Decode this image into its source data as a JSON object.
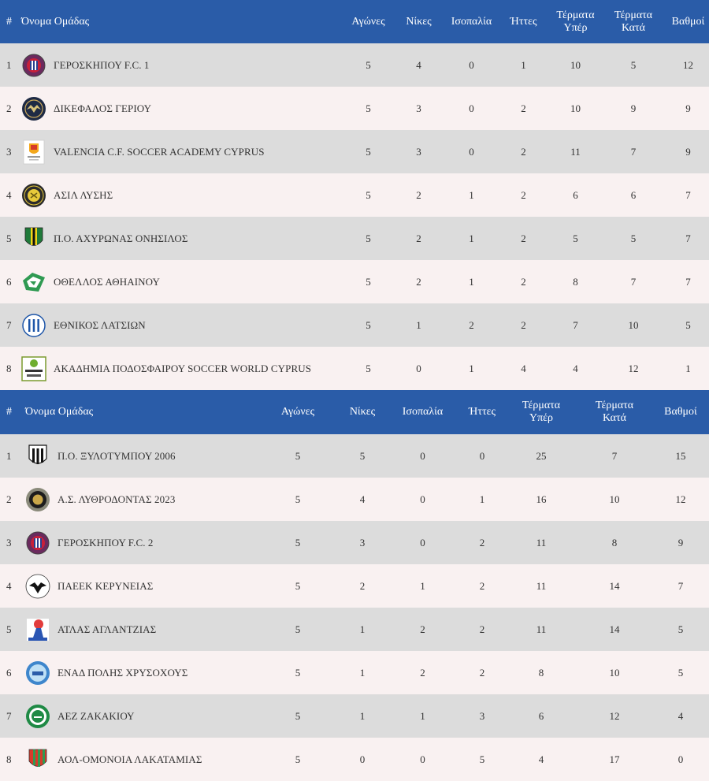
{
  "header": {
    "rank": "#",
    "team": "Όνομα Ομάδας",
    "played": "Αγώνες",
    "wins": "Νίκες",
    "draws": "Ισοπαλία",
    "losses": "Ήττες",
    "goals_for_1": "Τέρματα",
    "goals_for_2": "Υπέρ",
    "goals_against_1": "Τέρματα",
    "goals_against_2": "Κατά",
    "points": "Βαθμοί"
  },
  "colors": {
    "header_bg": "#2a5ca8",
    "row_odd": "#dcdcdc",
    "row_even": "#f9f1f1"
  },
  "tables": [
    {
      "rows": [
        {
          "rank": "1",
          "team": "ΓΕΡΟΣΚΗΠΟΥ F.C. 1",
          "logo": "geroskipou-crest-icon",
          "played": "5",
          "wins": "4",
          "draws": "0",
          "losses": "1",
          "gf": "10",
          "ga": "5",
          "pts": "12"
        },
        {
          "rank": "2",
          "team": "ΔΙΚΕΦΑΛΟΣ ΓΕΡΙΟΥ",
          "logo": "double-eagle-crest-icon",
          "played": "5",
          "wins": "3",
          "draws": "0",
          "losses": "2",
          "gf": "10",
          "ga": "9",
          "pts": "9"
        },
        {
          "rank": "3",
          "team": "VALENCIA C.F. SOCCER ACADEMY CYPRUS",
          "logo": "valencia-bat-crest-icon",
          "played": "5",
          "wins": "3",
          "draws": "0",
          "losses": "2",
          "gf": "11",
          "ga": "7",
          "pts": "9"
        },
        {
          "rank": "4",
          "team": "ΑΣΙΛ ΛΥΣΗΣ",
          "logo": "asil-crest-icon",
          "played": "5",
          "wins": "2",
          "draws": "1",
          "losses": "2",
          "gf": "6",
          "ga": "6",
          "pts": "7"
        },
        {
          "rank": "5",
          "team": "Π.Ο. ΑΧΥΡΩΝΑΣ ΟΝΗΣΙΛΟΣ",
          "logo": "achyronas-shield-icon",
          "played": "5",
          "wins": "2",
          "draws": "1",
          "losses": "2",
          "gf": "5",
          "ga": "5",
          "pts": "7"
        },
        {
          "rank": "6",
          "team": "ΟΘΕΛΛΟΣ ΑΘΗΑΙΝΟΥ",
          "logo": "othellos-green-crest-icon",
          "played": "5",
          "wins": "2",
          "draws": "1",
          "losses": "2",
          "gf": "8",
          "ga": "7",
          "pts": "7"
        },
        {
          "rank": "7",
          "team": "ΕΘΝΙΚΟΣ ΛΑΤΣΙΩΝ",
          "logo": "ethnikos-striped-crest-icon",
          "played": "5",
          "wins": "1",
          "draws": "2",
          "losses": "2",
          "gf": "7",
          "ga": "10",
          "pts": "5"
        },
        {
          "rank": "8",
          "team": "ΑΚΑΔΗΜΙΑ ΠΟΔΟΣΦΑΙΡΟΥ SOCCER WORLD CYPRUS",
          "logo": "soccer-world-logo-icon",
          "played": "5",
          "wins": "0",
          "draws": "1",
          "losses": "4",
          "gf": "4",
          "ga": "12",
          "pts": "1"
        }
      ]
    },
    {
      "rows": [
        {
          "rank": "1",
          "team": "Π.Ο. ΞΥΛΟΤΥΜΠΟΥ 2006",
          "logo": "xylotympou-striped-shield-icon",
          "played": "5",
          "wins": "5",
          "draws": "0",
          "losses": "0",
          "gf": "25",
          "ga": "7",
          "pts": "15"
        },
        {
          "rank": "2",
          "team": "Α.Σ. ΛΥΘΡΟΔΟΝΤΑΣ 2023",
          "logo": "lythrodontas-round-crest-icon",
          "played": "5",
          "wins": "4",
          "draws": "0",
          "losses": "1",
          "gf": "16",
          "ga": "10",
          "pts": "12"
        },
        {
          "rank": "3",
          "team": "ΓΕΡΟΣΚΗΠΟΥ F.C. 2",
          "logo": "geroskipou-crest-icon",
          "played": "5",
          "wins": "3",
          "draws": "0",
          "losses": "2",
          "gf": "11",
          "ga": "8",
          "pts": "9"
        },
        {
          "rank": "4",
          "team": "ΠΑΕΕΚ ΚΕΡΥΝΕΙΑΣ",
          "logo": "paeek-eagle-crest-icon",
          "played": "5",
          "wins": "2",
          "draws": "1",
          "losses": "2",
          "gf": "11",
          "ga": "14",
          "pts": "7"
        },
        {
          "rank": "5",
          "team": "ΑΤΛΑΣ ΑΓΛΑΝΤΖΙΑΣ",
          "logo": "atlas-figure-crest-icon",
          "played": "5",
          "wins": "1",
          "draws": "2",
          "losses": "2",
          "gf": "11",
          "ga": "14",
          "pts": "5"
        },
        {
          "rank": "6",
          "team": "ΕΝΑΔ ΠΟΛΗΣ ΧΡΥΣΟΧΟΥΣ",
          "logo": "enad-blue-round-crest-icon",
          "played": "5",
          "wins": "1",
          "draws": "2",
          "losses": "2",
          "gf": "8",
          "ga": "10",
          "pts": "5"
        },
        {
          "rank": "7",
          "team": "ΑΕΖ ΖΑΚΑΚΙΟΥ",
          "logo": "aez-green-round-crest-icon",
          "played": "5",
          "wins": "1",
          "draws": "1",
          "losses": "3",
          "gf": "6",
          "ga": "12",
          "pts": "4"
        },
        {
          "rank": "8",
          "team": "ΑΟΛ-ΟΜΟΝΟΙΑ ΛΑΚΑΤΑΜΙΑΣ",
          "logo": "omonoia-striped-shield-icon",
          "played": "5",
          "wins": "0",
          "draws": "0",
          "losses": "5",
          "gf": "4",
          "ga": "17",
          "pts": "0"
        }
      ]
    }
  ]
}
